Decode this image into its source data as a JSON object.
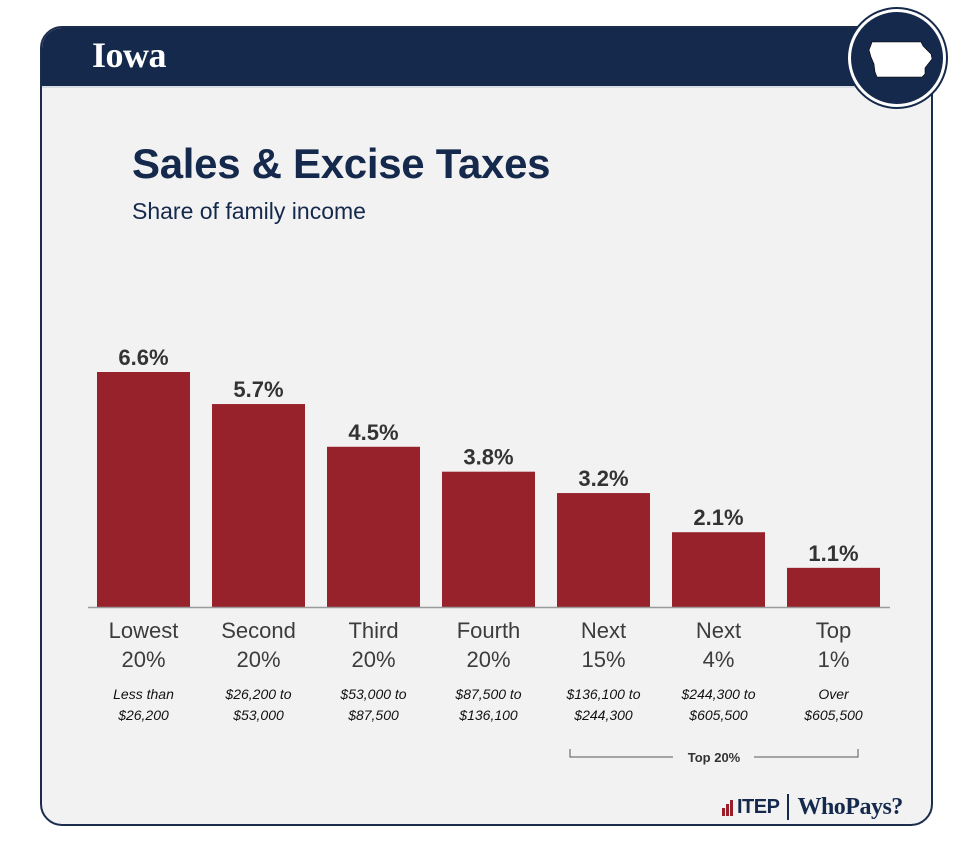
{
  "header": {
    "state": "Iowa"
  },
  "title": "Sales & Excise Taxes",
  "subtitle": "Share of family income",
  "logo": {
    "itep": "ITEP",
    "whopays": "WhoPays?"
  },
  "colors": {
    "bar": "#98222b",
    "navy": "#15294c",
    "background": "#f2f2f2"
  },
  "chart_data": {
    "type": "bar",
    "title": "Sales & Excise Taxes",
    "subtitle": "Share of family income",
    "categories": [
      {
        "group": [
          "Lowest",
          "20%"
        ],
        "range": [
          "Less than",
          "$26,200"
        ]
      },
      {
        "group": [
          "Second",
          "20%"
        ],
        "range": [
          "$26,200 to",
          "$53,000"
        ]
      },
      {
        "group": [
          "Third",
          "20%"
        ],
        "range": [
          "$53,000 to",
          "$87,500"
        ]
      },
      {
        "group": [
          "Fourth",
          "20%"
        ],
        "range": [
          "$87,500 to",
          "$136,100"
        ]
      },
      {
        "group": [
          "Next",
          "15%"
        ],
        "range": [
          "$136,100 to",
          "$244,300"
        ]
      },
      {
        "group": [
          "Next",
          "4%"
        ],
        "range": [
          "$244,300 to",
          "$605,500"
        ]
      },
      {
        "group": [
          "Top",
          "1%"
        ],
        "range": [
          "Over",
          "$605,500"
        ]
      }
    ],
    "values": [
      6.6,
      5.7,
      4.5,
      3.8,
      3.2,
      2.1,
      1.1
    ],
    "value_labels": [
      "6.6%",
      "5.7%",
      "4.5%",
      "3.8%",
      "3.2%",
      "2.1%",
      "1.1%"
    ],
    "ylim": [
      0,
      6.6
    ],
    "grid": false,
    "legend": "none",
    "bracket": {
      "label": "Top 20%",
      "from_index": 4,
      "to_index": 6
    }
  }
}
